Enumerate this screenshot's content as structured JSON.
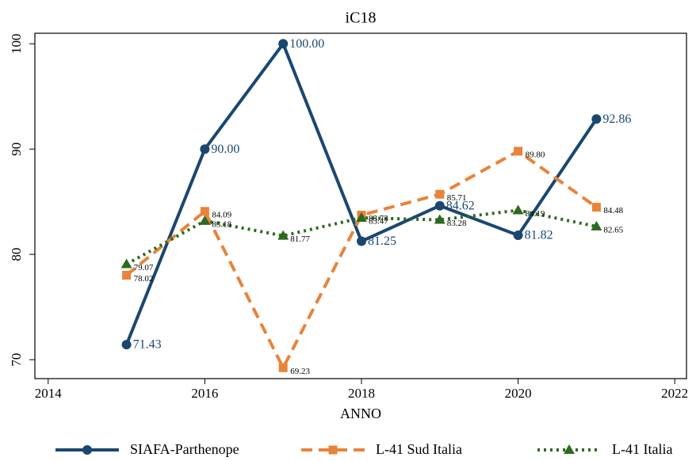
{
  "chart_data": {
    "type": "line",
    "title": "iC18",
    "x_label": "ANNO",
    "x": [
      2015,
      2016,
      2017,
      2018,
      2019,
      2020,
      2021
    ],
    "xlim": [
      2013.83,
      2022.15
    ],
    "xticks": [
      2014,
      2016,
      2018,
      2020,
      2022
    ],
    "ylim": [
      68.2,
      101
    ],
    "yticks": [
      70,
      80,
      90,
      100
    ],
    "grid": false,
    "legend": "bottom",
    "series": [
      {
        "name": "SIAFA-Parthenope",
        "color": "#1a476f",
        "dash": "solid",
        "marker": "circle",
        "values": [
          71.43,
          90,
          100,
          81.25,
          84.62,
          81.82,
          92.86
        ],
        "value_labels": [
          "71.43",
          "90.00",
          "100.00",
          "81.25",
          "84.62",
          "81.82",
          "92.86"
        ]
      },
      {
        "name": "L-41 Sud Italia",
        "color": "#e8833a",
        "dash": "dash",
        "marker": "square",
        "values": [
          78.02,
          84.09,
          69.23,
          83.73,
          85.71,
          89.8,
          84.48
        ],
        "value_labels": [
          "78.02",
          "84.09",
          "69.23",
          "83.73",
          "85.71",
          "89.80",
          "84.48"
        ]
      },
      {
        "name": "L-41 Italia",
        "color": "#2d6a1e",
        "dash": "dot",
        "marker": "triangle",
        "values": [
          79.07,
          83.18,
          81.77,
          83.47,
          83.28,
          84.19,
          82.65
        ],
        "value_labels": [
          "79.07",
          "83.18",
          "81.77",
          "83.47",
          "83.28",
          "84.19",
          "82.65"
        ]
      }
    ]
  }
}
